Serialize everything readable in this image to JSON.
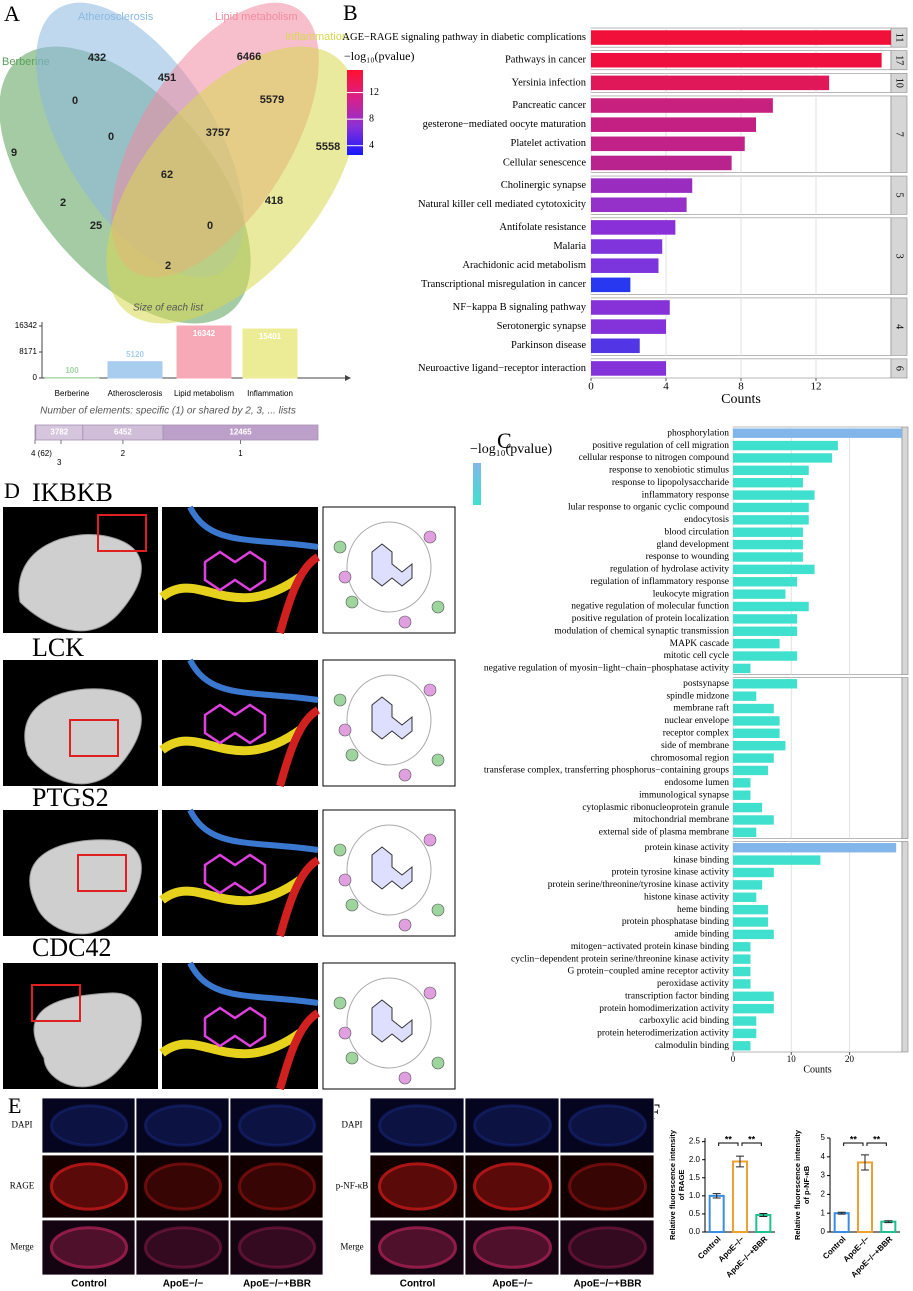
{
  "panel_labels": [
    "A",
    "B",
    "C",
    "D",
    "E",
    "F"
  ],
  "chart_data": [
    {
      "type": "venn",
      "series": [
        {
          "name": "Berberine",
          "color": "#5aa05a"
        },
        {
          "name": "Atherosclerosis",
          "color": "#8ab8e0"
        },
        {
          "name": "Lipid metabolism",
          "color": "#f08aa0"
        },
        {
          "name": "Inflammation",
          "color": "#d8d850"
        }
      ],
      "regions": [
        432,
        6466,
        451,
        5579,
        0,
        9,
        0,
        3757,
        5558,
        62,
        2,
        418,
        25,
        0,
        2
      ]
    },
    {
      "type": "bar",
      "title": "Size of each list",
      "categories": [
        "Berberine",
        "Atherosclerosis",
        "Lipid metabolism",
        "Inflammation"
      ],
      "values": [
        100,
        5120,
        16342,
        15401
      ],
      "colors": [
        "#9ed49e",
        "#a9cdee",
        "#f7a9b8",
        "#ecec96"
      ],
      "ylim": [
        0,
        16342
      ],
      "yticks": [
        0,
        8171,
        16342
      ]
    },
    {
      "type": "stacked-hbar",
      "title": "Number of elements: specific (1) or shared by 2, 3, ... lists",
      "categories": [
        "4 (62)",
        "3",
        "2",
        "1"
      ],
      "values": [
        62,
        3782,
        6452,
        12465
      ],
      "colors": [
        "#b597c2",
        "#d6c6dd",
        "#d0bed8",
        "#bda0c9"
      ]
    },
    {
      "type": "faceted-hbar",
      "xlabel": "Counts",
      "xlim": [
        0,
        16
      ],
      "xticks": [
        0,
        4,
        8,
        12
      ],
      "colorbar": {
        "title": "−log₁₀(pvalue)",
        "ticks": [
          4,
          8,
          12
        ],
        "lim": [
          2.6,
          15.4
        ],
        "colors": [
          "#1818ff",
          "#8a30d8",
          "#d8208a",
          "#ff1030"
        ]
      },
      "groups": [
        {
          "label": "11",
          "categories": [
            "AGE−RAGE signaling pathway in diabetic complications"
          ],
          "values": [
            16
          ],
          "colors": [
            "#f0103a"
          ]
        },
        {
          "label": "17",
          "categories": [
            "Pathways in cancer"
          ],
          "values": [
            15.5
          ],
          "colors": [
            "#f01040"
          ]
        },
        {
          "label": "10",
          "categories": [
            "Yersinia infection"
          ],
          "values": [
            12.7
          ],
          "colors": [
            "#e0185a"
          ]
        },
        {
          "label": "7",
          "categories": [
            "Pancreatic cancer",
            "gesterone−mediated oocyte maturation",
            "Platelet activation",
            "Cellular senescence"
          ],
          "values": [
            9.7,
            8.8,
            8.2,
            7.5
          ],
          "colors": [
            "#c8207e",
            "#c42084",
            "#c02288",
            "#b8238e"
          ]
        },
        {
          "label": "5",
          "categories": [
            "Cholinergic synapse",
            "Natural killer cell mediated cytotoxicity"
          ],
          "values": [
            5.4,
            5.1
          ],
          "colors": [
            "#9a2cc0",
            "#9530c8"
          ]
        },
        {
          "label": "3",
          "categories": [
            "Antifolate resistance",
            "Malaria",
            "Arachidonic acid metabolism",
            "Transcriptional misregulation in cancer"
          ],
          "values": [
            4.5,
            3.8,
            3.6,
            2.1
          ],
          "colors": [
            "#8a30d8",
            "#8034dc",
            "#7c34dc",
            "#2838f0"
          ]
        },
        {
          "label": "4",
          "categories": [
            "NF−kappa B signaling pathway",
            "Serotonergic synapse",
            "Parkinson disease"
          ],
          "values": [
            4.2,
            4.0,
            2.6
          ],
          "colors": [
            "#8632d8",
            "#8432da",
            "#5236e6"
          ]
        },
        {
          "label": "6",
          "categories": [
            "Neuroactive ligand−receptor interaction"
          ],
          "values": [
            4.0
          ],
          "colors": [
            "#8432da"
          ]
        }
      ]
    },
    {
      "type": "faceted-hbar",
      "xlabel": "Counts",
      "xlim": [
        0,
        29
      ],
      "xticks": [
        0,
        10,
        20
      ],
      "colorbar": {
        "title": "−log₁₀(pvalue)",
        "colors": [
          "#3fe0cd",
          "#82b6ea"
        ]
      },
      "groups": [
        {
          "categories": [
            "phosphorylation",
            "positive regulation of cell migration",
            "cellular response to nitrogen compound",
            "response to xenobiotic stimulus",
            "response to lipopolysaccharide",
            "inflammatory response",
            "lular response to organic cyclic compound",
            "endocytosis",
            "blood circulation",
            "gland development",
            "response to wounding",
            "regulation of hydrolase activity",
            "regulation of inflammatory response",
            "leukocyte migration",
            "negative regulation of molecular function",
            "positive regulation of protein localization",
            "modulation of chemical synaptic transmission",
            "MAPK cascade",
            "mitotic cell cycle",
            "negative regulation of myosin−light−chain−phosphatase activity"
          ],
          "values": [
            29,
            18,
            17,
            13,
            12,
            14,
            13,
            13,
            12,
            12,
            12,
            14,
            11,
            9,
            13,
            11,
            11,
            8,
            11,
            3
          ],
          "colors": [
            "#82b6ea",
            "#3fe0cd",
            "#3fe0cd",
            "#3fe0cd",
            "#3fe0cd",
            "#3fe0cd",
            "#3fe0cd",
            "#3fe0cd",
            "#3fe0cd",
            "#3fe0cd",
            "#3fe0cd",
            "#3fe0cd",
            "#3fe0cd",
            "#3fe0cd",
            "#3fe0cd",
            "#3fe0cd",
            "#3fe0cd",
            "#3fe0cd",
            "#3fe0cd",
            "#3fe0cd"
          ]
        },
        {
          "categories": [
            "postsynapse",
            "spindle midzone",
            "membrane raft",
            "nuclear envelope",
            "receptor complex",
            "side of membrane",
            "chromosomal region",
            "transferase complex, transferring phosphorus−containing groups",
            "endosome lumen",
            "immunological synapse",
            "cytoplasmic ribonucleoprotein granule",
            "mitochondrial membrane",
            "external side of plasma membrane"
          ],
          "values": [
            11,
            4,
            7,
            8,
            8,
            9,
            7,
            6,
            3,
            3,
            5,
            7,
            4
          ],
          "colors": [
            "#3fe0cd",
            "#3fe0cd",
            "#3fe0cd",
            "#3fe0cd",
            "#3fe0cd",
            "#3fe0cd",
            "#3fe0cd",
            "#3fe0cd",
            "#3fe0cd",
            "#3fe0cd",
            "#3fe0cd",
            "#3fe0cd",
            "#3fe0cd"
          ]
        },
        {
          "categories": [
            "protein kinase activity",
            "kinase binding",
            "protein tyrosine kinase activity",
            "protein serine/threonine/tyrosine kinase activity",
            "histone kinase activity",
            "heme binding",
            "protein phosphatase binding",
            "amide binding",
            "mitogen−activated protein kinase binding",
            "cyclin−dependent protein serine/threonine kinase activity",
            "G protein−coupled amine receptor activity",
            "peroxidase activity",
            "transcription factor binding",
            "protein homodimerization activity",
            "carboxylic acid binding",
            "protein heterodimerization activity",
            "calmodulin binding"
          ],
          "values": [
            28,
            15,
            7,
            5,
            4,
            6,
            6,
            7,
            3,
            3,
            3,
            3,
            7,
            7,
            4,
            4,
            3
          ],
          "colors": [
            "#82b6ea",
            "#3fe0cd",
            "#3fe0cd",
            "#3fe0cd",
            "#3fe0cd",
            "#3fe0cd",
            "#3fe0cd",
            "#3fe0cd",
            "#3fe0cd",
            "#3fe0cd",
            "#3fe0cd",
            "#3fe0cd",
            "#3fe0cd",
            "#3fe0cd",
            "#3fe0cd",
            "#3fe0cd",
            "#3fe0cd"
          ]
        }
      ]
    },
    {
      "type": "errorbar",
      "ylabel": "Relative fluorescence intensity of RAGE",
      "categories": [
        "Control",
        "ApoE−/−",
        "ApoE−/−+BBR"
      ],
      "values": [
        1.0,
        1.95,
        0.47
      ],
      "errors": [
        0.06,
        0.15,
        0.04
      ],
      "colors": [
        "#3a8de0",
        "#f0a030",
        "#20c090"
      ],
      "annotations": [
        "**",
        "**"
      ],
      "ylim": [
        0,
        2.6
      ],
      "yticks": [
        {
          "value": 0,
          "label": "0.0"
        },
        {
          "value": 0.5,
          "label": "0.5"
        },
        {
          "value": 1,
          "label": "1.0"
        },
        {
          "value": 1.5,
          "label": "1.5"
        },
        {
          "value": 2,
          "label": "2.0"
        },
        {
          "value": 2.5,
          "label": "2.5"
        }
      ]
    },
    {
      "type": "errorbar",
      "ylabel": "Relative fluorescence intensity of p-NF-κB",
      "categories": [
        "Control",
        "ApoE−/−",
        "ApoE−/−+BBR"
      ],
      "values": [
        1.0,
        3.7,
        0.55
      ],
      "errors": [
        0.05,
        0.4,
        0.05
      ],
      "colors": [
        "#3a8de0",
        "#f0a030",
        "#20c090"
      ],
      "annotations": [
        "**",
        "**"
      ],
      "ylim": [
        0,
        5
      ],
      "yticks": [
        0,
        1,
        2,
        3,
        4,
        5
      ]
    }
  ],
  "docking": {
    "targets": [
      "IKBKB",
      "LCK",
      "PTGS2",
      "CDC42"
    ]
  },
  "fluorescence": {
    "left": {
      "rows": [
        "DAPI",
        "RAGE",
        "Merge"
      ],
      "columns": [
        "Control",
        "ApoE−/−",
        "ApoE−/−+BBR"
      ]
    },
    "right": {
      "rows": [
        "DAPI",
        "p-NF-κB",
        "Merge"
      ],
      "columns": [
        "Control",
        "ApoE−/−",
        "ApoE−/−+BBR"
      ]
    }
  }
}
